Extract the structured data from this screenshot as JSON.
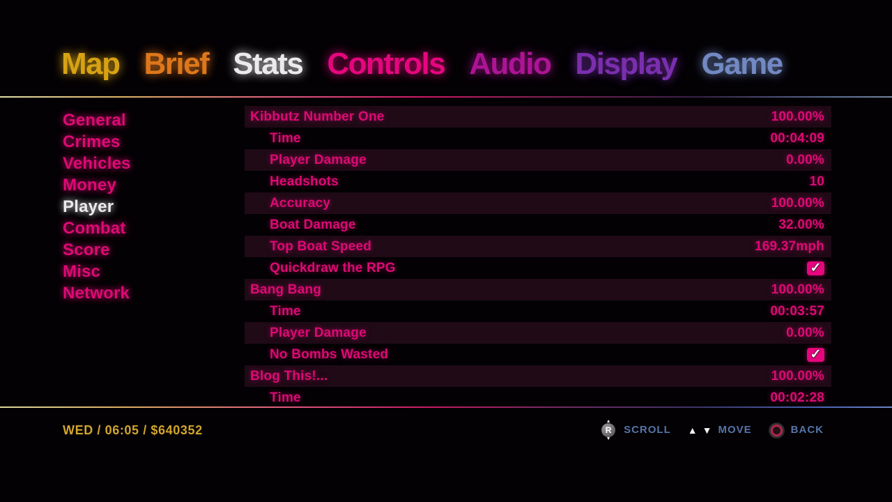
{
  "tabs": {
    "active": "Stats",
    "items": [
      {
        "label": "Map",
        "color": "#d7a214"
      },
      {
        "label": "Brief",
        "color": "#dd771c"
      },
      {
        "label": "Stats",
        "color": "#f2f0f2"
      },
      {
        "label": "Controls",
        "color": "#e5067e"
      },
      {
        "label": "Audio",
        "color": "#ad1495"
      },
      {
        "label": "Display",
        "color": "#7a2fae"
      },
      {
        "label": "Game",
        "color": "#7289c2"
      }
    ]
  },
  "sidebar": {
    "active": "Player",
    "items": [
      "General",
      "Crimes",
      "Vehicles",
      "Money",
      "Player",
      "Combat",
      "Score",
      "Misc",
      "Network"
    ]
  },
  "stats": {
    "rows": [
      {
        "label": "Kibbutz Number One",
        "level": "group",
        "type": "text",
        "value": "100.00%"
      },
      {
        "label": "Time",
        "level": "sub",
        "type": "text",
        "value": "00:04:09"
      },
      {
        "label": "Player Damage",
        "level": "sub",
        "type": "text",
        "value": "0.00%"
      },
      {
        "label": "Headshots",
        "level": "sub",
        "type": "text",
        "value": "10"
      },
      {
        "label": "Accuracy",
        "level": "sub",
        "type": "text",
        "value": "100.00%"
      },
      {
        "label": "Boat Damage",
        "level": "sub",
        "type": "text",
        "value": "32.00%"
      },
      {
        "label": "Top Boat Speed",
        "level": "sub",
        "type": "text",
        "value": "169.37mph"
      },
      {
        "label": "Quickdraw the RPG",
        "level": "sub",
        "type": "checkbox",
        "value": "checked",
        "check_glyph": "✓"
      },
      {
        "label": "Bang Bang",
        "level": "group",
        "type": "text",
        "value": "100.00%"
      },
      {
        "label": "Time",
        "level": "sub",
        "type": "text",
        "value": "00:03:57"
      },
      {
        "label": "Player Damage",
        "level": "sub",
        "type": "text",
        "value": "0.00%"
      },
      {
        "label": "No Bombs Wasted",
        "level": "sub",
        "type": "checkbox",
        "value": "checked",
        "check_glyph": "✓"
      },
      {
        "label": "Blog This!...",
        "level": "group",
        "type": "text",
        "value": "100.00%"
      },
      {
        "label": "Time",
        "level": "sub",
        "type": "text",
        "value": "00:02:28"
      }
    ]
  },
  "status_bar": {
    "info": "WED / 06:05 / $640352"
  },
  "hints": [
    {
      "icon": "right-stick-icon",
      "stick_letter": "R",
      "label": "SCROLL"
    },
    {
      "icon": "up-down-arrows-icon",
      "label": "MOVE"
    },
    {
      "icon": "circle-button-icon",
      "label": "BACK"
    }
  ],
  "colors": {
    "accent_pink": "#dc0a74",
    "active_white": "#eceaec",
    "row_stripe": "#1f0a16",
    "status_yellow": "#d2a52c",
    "hint_blue": "#5674a8",
    "checkbox_pink": "#e5067e"
  }
}
